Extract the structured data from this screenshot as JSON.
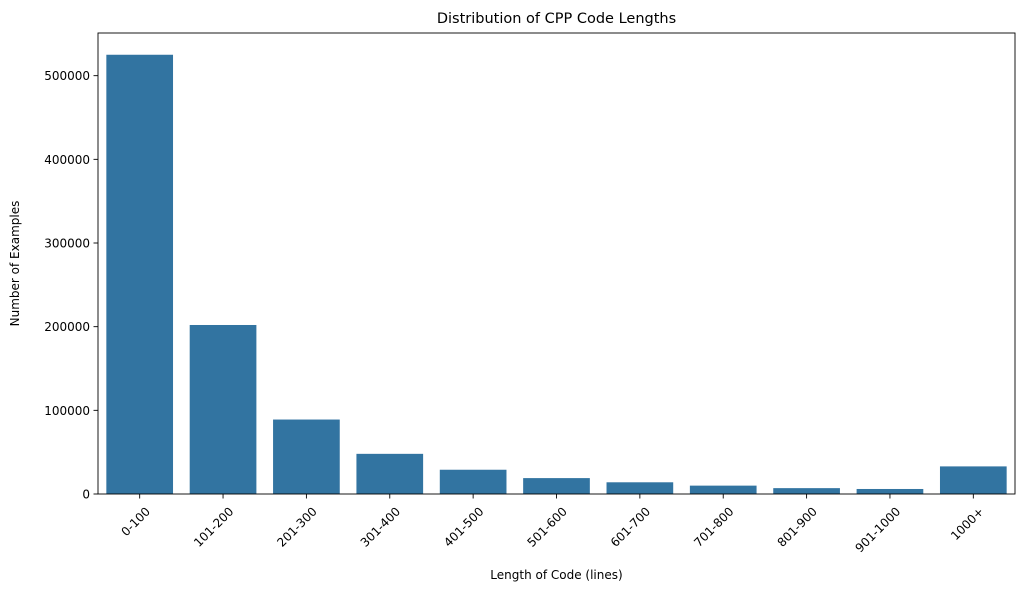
{
  "chart_data": {
    "type": "bar",
    "title": "Distribution of CPP Code Lengths",
    "xlabel": "Length of Code (lines)",
    "ylabel": "Number of Examples",
    "categories": [
      "0-100",
      "101-200",
      "201-300",
      "301-400",
      "401-500",
      "501-600",
      "601-700",
      "701-800",
      "801-900",
      "901-1000",
      "1000+"
    ],
    "values": [
      525000,
      202000,
      89000,
      48000,
      29000,
      19000,
      14000,
      10000,
      7000,
      6000,
      33000
    ],
    "ylim": [
      0,
      551000
    ],
    "yticks": [
      0,
      100000,
      200000,
      300000,
      400000,
      500000
    ],
    "ytick_labels": [
      "0",
      "100000",
      "200000",
      "300000",
      "400000",
      "500000"
    ],
    "grid": false,
    "bar_color": "#3274a1",
    "x_tick_rotation": 45
  }
}
